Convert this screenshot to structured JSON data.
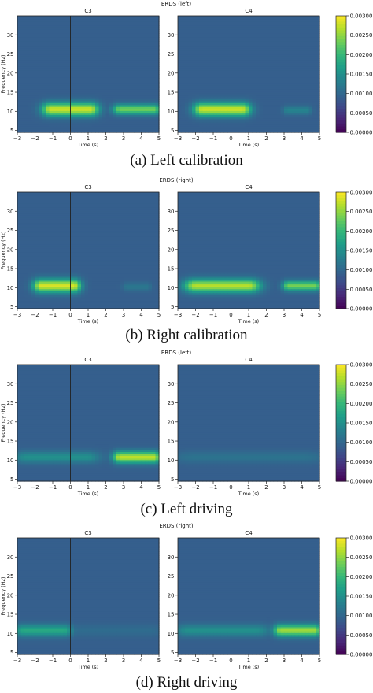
{
  "panels": [
    {
      "title": "ERDS (left)",
      "caption": "(a) Left calibration",
      "maps": [
        {
          "channel": "C3",
          "blobs": [
            {
              "t": [
                -1.5,
                1.5
              ],
              "f": [
                8.5,
                12.5
              ],
              "level": 0.92
            },
            {
              "t": [
                2.5,
                5.0
              ],
              "f": [
                9.0,
                12.0
              ],
              "level": 0.78
            }
          ]
        },
        {
          "channel": "C4",
          "blobs": [
            {
              "t": [
                -2.0,
                1.0
              ],
              "f": [
                8.5,
                12.5
              ],
              "level": 0.92
            },
            {
              "t": [
                3.0,
                4.5
              ],
              "f": [
                9.0,
                11.5
              ],
              "level": 0.45
            }
          ]
        }
      ]
    },
    {
      "title": "ERDS (right)",
      "caption": "(b) Right calibration",
      "maps": [
        {
          "channel": "C3",
          "blobs": [
            {
              "t": [
                -2.0,
                0.5
              ],
              "f": [
                8.5,
                12.5
              ],
              "level": 0.95
            },
            {
              "t": [
                3.0,
                4.5
              ],
              "f": [
                9.0,
                11.5
              ],
              "level": 0.4
            }
          ]
        },
        {
          "channel": "C4",
          "blobs": [
            {
              "t": [
                -2.5,
                1.5
              ],
              "f": [
                8.5,
                12.5
              ],
              "level": 0.9
            },
            {
              "t": [
                3.0,
                5.0
              ],
              "f": [
                9.0,
                12.0
              ],
              "level": 0.8
            }
          ]
        }
      ]
    },
    {
      "title": "ERDS (left)",
      "caption": "(c) Left driving",
      "maps": [
        {
          "channel": "C3",
          "blobs": [
            {
              "t": [
                -3.0,
                1.5
              ],
              "f": [
                9.0,
                12.5
              ],
              "level": 0.5
            },
            {
              "t": [
                2.5,
                5.0
              ],
              "f": [
                9.0,
                12.5
              ],
              "level": 0.9
            }
          ]
        },
        {
          "channel": "C4",
          "blobs": [
            {
              "t": [
                -3.0,
                5.0
              ],
              "f": [
                9.0,
                12.5
              ],
              "level": 0.38
            }
          ]
        }
      ]
    },
    {
      "title": "ERDS (right)",
      "caption": "(d) Right driving",
      "maps": [
        {
          "channel": "C3",
          "blobs": [
            {
              "t": [
                -3.0,
                0.0
              ],
              "f": [
                9.0,
                12.5
              ],
              "level": 0.6
            },
            {
              "t": [
                0.0,
                5.0
              ],
              "f": [
                9.0,
                12.5
              ],
              "level": 0.35
            }
          ]
        },
        {
          "channel": "C4",
          "blobs": [
            {
              "t": [
                -3.0,
                2.0
              ],
              "f": [
                9.0,
                12.5
              ],
              "level": 0.5
            },
            {
              "t": [
                2.5,
                5.0
              ],
              "f": [
                9.0,
                12.5
              ],
              "level": 0.85
            }
          ]
        }
      ]
    }
  ],
  "axes": {
    "ylabel": "Frequency (Hz)",
    "xlabel": "Time (s)",
    "xticks": [
      "−3",
      "−2",
      "−1",
      "0",
      "1",
      "2",
      "3",
      "4",
      "5"
    ],
    "yticks": [
      "5",
      "10",
      "15",
      "20",
      "25",
      "30"
    ],
    "xlim": [
      -3,
      5
    ],
    "ylim": [
      4.5,
      35
    ],
    "event_time": 0
  },
  "colorbar": {
    "colormap": "viridis",
    "range": [
      0.0,
      0.003
    ],
    "ticks": [
      "0.00000",
      "0.00050",
      "0.00100",
      "0.00150",
      "0.00200",
      "0.00250",
      "0.00300"
    ]
  },
  "colors": {
    "background_level": 0.1,
    "band_level": 0.3,
    "event_line": "#222222"
  },
  "chart_data": [
    {
      "type": "heatmap",
      "title": "ERDS (left)",
      "subplots": [
        "C3",
        "C4"
      ],
      "xlabel": "Time (s)",
      "ylabel": "Frequency (Hz)",
      "xlim": [
        -3,
        5
      ],
      "ylim": [
        4.5,
        35
      ],
      "clim": [
        0,
        0.003
      ],
      "note_caption": "(a) Left calibration"
    },
    {
      "type": "heatmap",
      "title": "ERDS (right)",
      "subplots": [
        "C3",
        "C4"
      ],
      "xlabel": "Time (s)",
      "ylabel": "Frequency (Hz)",
      "xlim": [
        -3,
        5
      ],
      "ylim": [
        4.5,
        35
      ],
      "clim": [
        0,
        0.003
      ],
      "note_caption": "(b) Right calibration"
    },
    {
      "type": "heatmap",
      "title": "ERDS (left)",
      "subplots": [
        "C3",
        "C4"
      ],
      "xlabel": "Time (s)",
      "ylabel": "Frequency (Hz)",
      "xlim": [
        -3,
        5
      ],
      "ylim": [
        4.5,
        35
      ],
      "clim": [
        0,
        0.003
      ],
      "note_caption": "(c) Left driving"
    },
    {
      "type": "heatmap",
      "title": "ERDS (right)",
      "subplots": [
        "C3",
        "C4"
      ],
      "xlabel": "Time (s)",
      "ylabel": "Frequency (Hz)",
      "xlim": [
        -3,
        5
      ],
      "ylim": [
        4.5,
        35
      ],
      "clim": [
        0,
        0.003
      ],
      "note_caption": "(d) Right driving"
    }
  ]
}
